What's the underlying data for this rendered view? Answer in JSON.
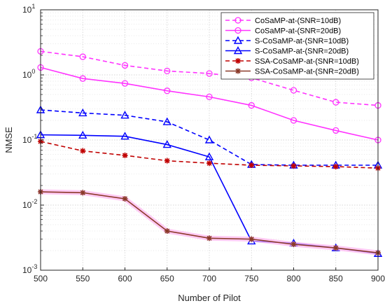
{
  "chart_data": {
    "type": "line",
    "xlabel": "Number of Pilot",
    "ylabel": "NMSE",
    "x": [
      500,
      550,
      600,
      650,
      700,
      750,
      800,
      850,
      900
    ],
    "xlim": [
      500,
      900
    ],
    "ylim": [
      0.001,
      10
    ],
    "yscale": "log",
    "grid": true,
    "legend_position": "top-right",
    "x_tick_labels": [
      "500",
      "550",
      "600",
      "650",
      "700",
      "750",
      "800",
      "850",
      "900"
    ],
    "y_tick_labels": [
      {
        "base": "10",
        "exp": "-3",
        "value": 0.001
      },
      {
        "base": "10",
        "exp": "-2",
        "value": 0.01
      },
      {
        "base": "10",
        "exp": "-1",
        "value": 0.1
      },
      {
        "base": "10",
        "exp": "0",
        "value": 1
      },
      {
        "base": "10",
        "exp": "1",
        "value": 10
      }
    ],
    "series": [
      {
        "name": "CoSaMP-at-(SNR=10dB)",
        "color": "#ff33ff",
        "dash": true,
        "marker": "circle",
        "highlight": false,
        "values": [
          2.3,
          1.9,
          1.4,
          1.15,
          1.05,
          0.9,
          0.58,
          0.38,
          0.34
        ]
      },
      {
        "name": "CoSaMP-at-(SNR=20dB)",
        "color": "#ff33ff",
        "dash": false,
        "marker": "circle",
        "highlight": false,
        "values": [
          1.3,
          0.88,
          0.74,
          0.57,
          0.46,
          0.34,
          0.2,
          0.14,
          0.1
        ]
      },
      {
        "name": "S-CoSaMP-at-(SNR=10dB)",
        "color": "#0000ff",
        "dash": true,
        "marker": "triangle",
        "highlight": false,
        "values": [
          0.29,
          0.26,
          0.24,
          0.19,
          0.1,
          0.042,
          0.041,
          0.041,
          0.041
        ]
      },
      {
        "name": "S-CoSaMP-at-(SNR=20dB)",
        "color": "#0000ff",
        "dash": false,
        "marker": "triangle",
        "highlight": false,
        "values": [
          0.12,
          0.118,
          0.114,
          0.085,
          0.055,
          0.0028,
          0.0026,
          0.0022,
          0.0018
        ]
      },
      {
        "name": "SSA-CoSaMP-at-(SNR=10dB)",
        "color": "#c00000",
        "dash": true,
        "marker": "star",
        "highlight": false,
        "values": [
          0.095,
          0.068,
          0.058,
          0.048,
          0.044,
          0.041,
          0.04,
          0.039,
          0.037
        ]
      },
      {
        "name": "SSA-CoSaMP-at-(SNR=20dB)",
        "color": "#8b3a2a",
        "dash": false,
        "marker": "star",
        "highlight": true,
        "values": [
          0.016,
          0.0155,
          0.0125,
          0.004,
          0.0031,
          0.003,
          0.0025,
          0.0022,
          0.00185
        ]
      }
    ]
  }
}
